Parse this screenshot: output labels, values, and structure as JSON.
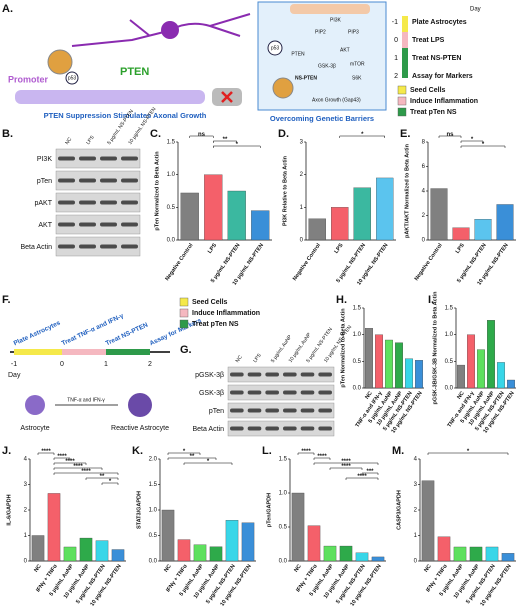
{
  "panel_a": {
    "label": "A.",
    "promoter": "Promoter",
    "p53": "p53",
    "pten": "PTEN",
    "caption": "PTEN Suppression Stimulates Axonal Growth",
    "pathway": {
      "p53": "p53",
      "pten": "PTEN",
      "pip2": "PIP2",
      "pip3": "PIP3",
      "pi3k": "PI3K",
      "akt": "AKT",
      "gsk": "GSK-3β",
      "mtor": "mTOR",
      "s6k": "S6K",
      "ns": "NS-PTEN",
      "axon": "Axon Growth (Gap43)",
      "caption": "Overcoming Genetic Barriers"
    },
    "timeline": {
      "day": "Day",
      "steps": [
        [
          "-1",
          "Plate Astrocytes"
        ],
        [
          "0",
          "Treat LPS"
        ],
        [
          "1",
          "Treat NS-PTEN"
        ],
        [
          "2",
          "Assay for Markers"
        ]
      ]
    },
    "legend": [
      "Seed Cells",
      "Induce Inflammation",
      "Treat pTen NS"
    ]
  },
  "panel_b": {
    "label": "B.",
    "lanes": [
      "NC",
      "LPS",
      "5 µg/mL NS-PTEN",
      "10 µg/mL NS-PTEN"
    ],
    "rows": [
      "PI3K",
      "pTen",
      "pAKT",
      "AKT",
      "Beta Actin"
    ]
  },
  "panel_f": {
    "label": "F.",
    "steps": [
      [
        "-1",
        "Plate Astrocytes"
      ],
      [
        "0",
        "Treat TNF-α and IFN-γ"
      ],
      [
        "1",
        "Treat NS-PTEN"
      ],
      [
        "2",
        "Assay for Markers"
      ]
    ],
    "day": "Day",
    "legend": [
      "Seed Cells",
      "Induce Inflammation",
      "Treat pTen NS"
    ],
    "cell1": "Astrocyte",
    "arrow": "TNF-α and IFN-γ",
    "cell2": "Reactive Astrocyte"
  },
  "panel_g": {
    "label": "G.",
    "lanes": [
      "NC",
      "LPS",
      "5 µg/mL AuNP",
      "10 µg/mL AuNP",
      "5 µg/mL NS-PTEN",
      "10 µg/mL NS-PTEN"
    ],
    "rows": [
      "pGSK-3β",
      "GSK-3β",
      "pTen",
      "Beta Actin"
    ]
  },
  "chart_data": [
    {
      "type": "bar",
      "label": "C.",
      "ylabel": "pTen Normalized to Beta Actin",
      "categories": [
        "Negative Control",
        "LPS",
        "5 µg/mL NS-PTEN",
        "10 µg/mL NS-PTEN"
      ],
      "values": [
        0.72,
        1.0,
        0.75,
        0.45
      ],
      "colors": [
        "#808080",
        "#f4606a",
        "#3bb8a0",
        "#3a8fd8"
      ],
      "ylim": [
        0,
        1.5
      ],
      "yticks": [
        {
          "value": 0,
          "label": "0.0"
        },
        {
          "value": 0.5,
          "label": "0.5"
        },
        {
          "value": 1,
          "label": "1.0"
        },
        {
          "value": 1.5,
          "label": "1.5"
        }
      ],
      "annotations": [
        "ns",
        "**",
        "*"
      ]
    },
    {
      "type": "bar",
      "label": "D.",
      "ylabel": "PI3K Relative to Beta Actin",
      "categories": [
        "Negative Control",
        "LPS",
        "5 µg/mL NS-PTEN",
        "10 µg/mL NS-PTEN"
      ],
      "values": [
        0.65,
        1.0,
        1.6,
        1.9
      ],
      "colors": [
        "#808080",
        "#f4606a",
        "#3bb8a0",
        "#5bc4ee"
      ],
      "ylim": [
        0,
        3
      ],
      "yticks": [
        0,
        1,
        2,
        3
      ],
      "annotations": [
        "*"
      ]
    },
    {
      "type": "bar",
      "label": "E.",
      "ylabel": "pAKT/AKT Normalized to Beta Actin",
      "categories": [
        "Negative Control",
        "LPS",
        "5 µg/mL NS-PTEN",
        "10 µg/mL NS-PTEN"
      ],
      "values": [
        4.2,
        1.0,
        1.7,
        2.9
      ],
      "colors": [
        "#808080",
        "#f4606a",
        "#5bc4ee",
        "#3a8fd8"
      ],
      "ylim": [
        0,
        8
      ],
      "yticks": [
        0,
        2,
        4,
        6,
        8
      ],
      "annotations": [
        "ns",
        "*",
        "*"
      ]
    },
    {
      "type": "bar",
      "label": "H.",
      "ylabel": "pTen Normalized to Beta Actin",
      "categories": [
        "NC",
        "TNF-α and IFN-γ",
        "5 µg/mL AuNP",
        "10 µg/mL AuNP",
        "5 µg/mL NS-PTEN",
        "10 µg/mL NS-PTEN"
      ],
      "values": [
        1.12,
        1.0,
        0.9,
        0.85,
        0.55,
        0.52
      ],
      "colors": [
        "#808080",
        "#f4606a",
        "#5ee05e",
        "#2eaa4a",
        "#38d6e8",
        "#3a8fd8"
      ],
      "ylim": [
        0,
        1.5
      ],
      "yticks": [
        {
          "value": 0,
          "label": "0.0"
        },
        {
          "value": 0.5,
          "label": "0.5"
        },
        {
          "value": 1,
          "label": "1.0"
        },
        {
          "value": 1.5,
          "label": "1.5"
        }
      ],
      "annotations": []
    },
    {
      "type": "bar",
      "label": "I.",
      "ylabel": "pGSK-3B/GSK-3B Normalized to Beta Actin",
      "categories": [
        "NC",
        "TNF-α and IFN-γ",
        "5 µg/mL AuNP",
        "10 µg/mL AuNP",
        "5 µg/mL NS-PTEN",
        "10 µg/mL NS-PTEN"
      ],
      "values": [
        0.43,
        1.0,
        0.72,
        1.27,
        0.48,
        0.15
      ],
      "colors": [
        "#808080",
        "#f4606a",
        "#5ee05e",
        "#2eaa4a",
        "#38d6e8",
        "#3a8fd8"
      ],
      "ylim": [
        0,
        1.5
      ],
      "yticks": [
        {
          "value": 0,
          "label": "0.0"
        },
        {
          "value": 0.5,
          "label": "0.5"
        },
        {
          "value": 1,
          "label": "1.0"
        },
        {
          "value": 1.5,
          "label": "1.5"
        }
      ],
      "annotations": []
    },
    {
      "type": "bar",
      "label": "J.",
      "ylabel": "IL-6/GAPDH",
      "categories": [
        "NC",
        "IFNγ + TNFα",
        "5 µg/mL AuNP",
        "10 µg/mL AuNP",
        "5 µg/mL NS-PTEN",
        "10 µg/mL NS-PTEN"
      ],
      "values": [
        1.0,
        2.65,
        0.55,
        0.9,
        0.8,
        0.45
      ],
      "colors": [
        "#808080",
        "#f4606a",
        "#5ee05e",
        "#2eaa4a",
        "#38d6e8",
        "#3a8fd8"
      ],
      "ylim": [
        0,
        4
      ],
      "yticks": [
        0,
        1,
        2,
        3,
        4
      ],
      "annotations": [
        "****",
        "****",
        "****",
        "****",
        "****",
        "**",
        "*"
      ]
    },
    {
      "type": "bar",
      "label": "K.",
      "ylabel": "STAT3/GAPDH",
      "categories": [
        "NC",
        "IFNγ + TNFα",
        "5 µg/mL AuNP",
        "10 µg/mL AuNP",
        "5 µg/mL NS-PTEN",
        "10 µg/mL NS-PTEN"
      ],
      "values": [
        1.0,
        0.42,
        0.32,
        0.28,
        0.8,
        0.75
      ],
      "colors": [
        "#808080",
        "#f4606a",
        "#5ee05e",
        "#2eaa4a",
        "#38d6e8",
        "#3a8fd8"
      ],
      "ylim": [
        0,
        2
      ],
      "yticks": [
        {
          "value": 0,
          "label": "0.0"
        },
        {
          "value": 0.5,
          "label": "0.5"
        },
        {
          "value": 1,
          "label": "1.0"
        },
        {
          "value": 1.5,
          "label": "1.5"
        },
        {
          "value": 2,
          "label": "2.0"
        }
      ],
      "annotations": [
        "*",
        "**",
        "*"
      ]
    },
    {
      "type": "bar",
      "label": "L.",
      "ylabel": "pTen/GAPDH",
      "categories": [
        "NC",
        "IFNγ + TNFα",
        "5 µg/mL AuNP",
        "10 µg/mL AuNP",
        "5 µg/mL NS-PTEN",
        "10 µg/mL NS-PTEN"
      ],
      "values": [
        1.0,
        0.52,
        0.22,
        0.22,
        0.12,
        0.06
      ],
      "colors": [
        "#808080",
        "#f4606a",
        "#5ee05e",
        "#2eaa4a",
        "#38d6e8",
        "#3a8fd8"
      ],
      "ylim": [
        0,
        1.5
      ],
      "yticks": [
        {
          "value": 0,
          "label": "0.0"
        },
        {
          "value": 0.5,
          "label": "0.5"
        },
        {
          "value": 1,
          "label": "1.0"
        },
        {
          "value": 1.5,
          "label": "1.5"
        }
      ],
      "annotations": [
        "****",
        "****",
        "****",
        "****",
        "***",
        "****"
      ]
    },
    {
      "type": "bar",
      "label": "M.",
      "ylabel": "CASP3/GAPDH",
      "categories": [
        "NC",
        "IFNγ + TNFα",
        "5 µg/mL AuNP",
        "10 µg/mL AuNP",
        "5 µg/mL NS-PTEN",
        "10 µg/mL NS-PTEN"
      ],
      "values": [
        3.15,
        0.95,
        0.55,
        0.55,
        0.55,
        0.3
      ],
      "colors": [
        "#808080",
        "#f4606a",
        "#5ee05e",
        "#2eaa4a",
        "#38d6e8",
        "#3a8fd8"
      ],
      "ylim": [
        0,
        4
      ],
      "yticks": [
        0,
        1,
        2,
        3,
        4
      ],
      "annotations": [
        "*"
      ]
    }
  ]
}
